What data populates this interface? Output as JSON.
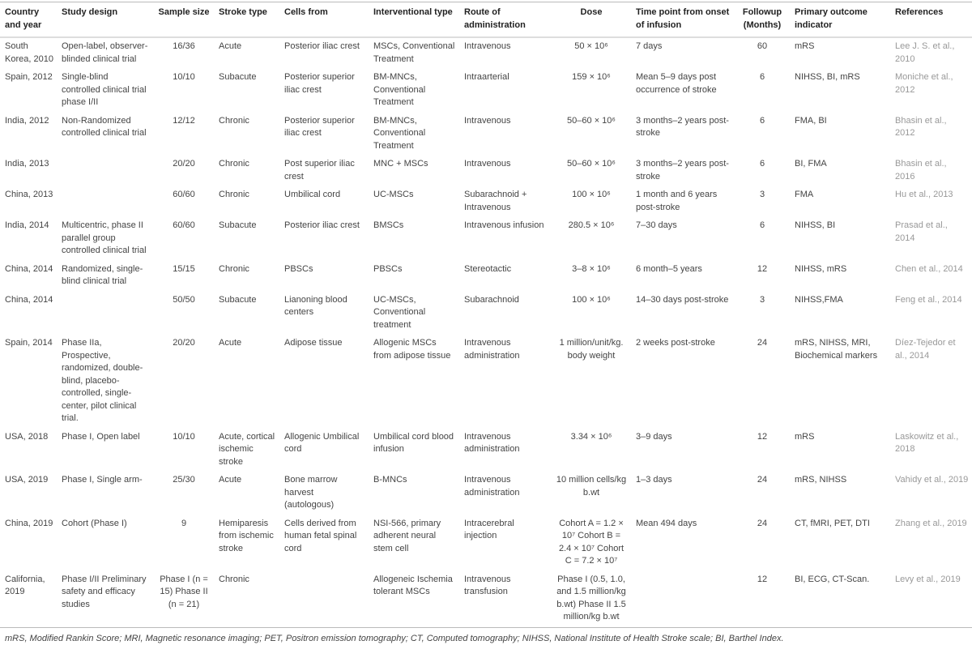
{
  "headers": [
    "Country and year",
    "Study design",
    "Sample size",
    "Stroke type",
    "Cells from",
    "Interventional type",
    "Route of administration",
    "Dose",
    "Time point from onset of infusion",
    "Followup (Months)",
    "Primary outcome indicator",
    "References"
  ],
  "rows": [
    [
      "South Korea, 2010",
      "Open-label, observer-blinded clinical trial",
      "16/36",
      "Acute",
      "Posterior iliac crest",
      "MSCs, Conventional Treatment",
      "Intravenous",
      "50 × 10⁶",
      "7 days",
      "60",
      "mRS",
      "Lee J. S. et al., 2010"
    ],
    [
      "Spain, 2012",
      "Single-blind controlled clinical trial phase I/II",
      "10/10",
      "Subacute",
      "Posterior superior iliac crest",
      "BM-MNCs, Conventional Treatment",
      "Intraarterial",
      "159 × 10⁶",
      "Mean 5–9 days post occurrence of stroke",
      "6",
      "NIHSS, BI, mRS",
      "Moniche et al., 2012"
    ],
    [
      "India, 2012",
      "Non-Randomized controlled clinical trial",
      "12/12",
      "Chronic",
      "Posterior superior iliac crest",
      "BM-MNCs, Conventional Treatment",
      "Intravenous",
      "50–60 × 10⁶",
      "3 months–2 years post-stroke",
      "6",
      "FMA, BI",
      "Bhasin et al., 2012"
    ],
    [
      "India, 2013",
      "",
      "20/20",
      "Chronic",
      "Post superior iliac crest",
      "MNC + MSCs",
      "Intravenous",
      "50–60 × 10⁶",
      "3 months–2 years post-stroke",
      "6",
      "BI, FMA",
      "Bhasin et al., 2016"
    ],
    [
      "China, 2013",
      "",
      "60/60",
      "Chronic",
      "Umbilical cord",
      "UC-MSCs",
      "Subarachnoid + Intravenous",
      "100 × 10⁶",
      "1 month and 6 years post-stroke",
      "3",
      "FMA",
      "Hu et al., 2013"
    ],
    [
      "India, 2014",
      "Multicentric, phase II parallel group controlled clinical trial",
      "60/60",
      "Subacute",
      "Posterior iliac crest",
      "BMSCs",
      "Intravenous infusion",
      "280.5 × 10⁶",
      "7–30 days",
      "6",
      "NIHSS, BI",
      "Prasad et al., 2014"
    ],
    [
      "China, 2014",
      "Randomized, single-blind clinical trial",
      "15/15",
      "Chronic",
      "PBSCs",
      "PBSCs",
      "Stereotactic",
      "3–8 × 10⁶",
      "6 month–5 years",
      "12",
      "NIHSS, mRS",
      "Chen et al., 2014"
    ],
    [
      "China, 2014",
      "",
      "50/50",
      "Subacute",
      "Lianoning blood centers",
      "UC-MSCs, Conventional treatment",
      "Subarachnoid",
      "100 × 10⁶",
      "14–30 days post-stroke",
      "3",
      "NIHSS,FMA",
      "Feng et al., 2014"
    ],
    [
      "Spain, 2014",
      "Phase IIa, Prospective, randomized, double-blind, placebo-controlled, single-center, pilot clinical trial.",
      "20/20",
      "Acute",
      "Adipose tissue",
      "Allogenic MSCs from adipose tissue",
      "Intravenous administration",
      "1 million/unit/kg. body weight",
      "2 weeks post-stroke",
      "24",
      "mRS, NIHSS, MRI, Biochemical markers",
      "Díez-Tejedor et al., 2014"
    ],
    [
      "USA, 2018",
      "Phase I, Open label",
      "10/10",
      "Acute, cortical ischemic stroke",
      "Allogenic Umbilical cord",
      "Umbilical cord blood infusion",
      "Intravenous administration",
      "3.34 × 10⁶",
      "3–9 days",
      "12",
      "mRS",
      "Laskowitz et al., 2018"
    ],
    [
      "USA, 2019",
      "Phase I, Single arm-",
      "25/30",
      "Acute",
      "Bone marrow harvest (autologous)",
      "B-MNCs",
      "Intravenous administration",
      "10 million cells/kg b.wt",
      "1–3 days",
      "24",
      "mRS, NIHSS",
      "Vahidy et al., 2019"
    ],
    [
      "China, 2019",
      "Cohort (Phase I)",
      "9",
      "Hemiparesis from ischemic stroke",
      "Cells derived from human fetal spinal cord",
      "NSI-566, primary adherent neural stem cell",
      "Intracerebral injection",
      "Cohort A = 1.2 × 10⁷ Cohort B = 2.4 × 10⁷ Cohort C = 7.2 × 10⁷",
      "Mean 494 days",
      "24",
      "CT, fMRI, PET, DTI",
      "Zhang et al., 2019"
    ],
    [
      "California, 2019",
      "Phase I/II Preliminary safety and efficacy studies",
      "Phase I (n = 15) Phase II (n = 21)",
      "Chronic",
      "",
      "Allogeneic Ischemia tolerant MSCs",
      "Intravenous transfusion",
      "Phase I (0.5, 1.0, and 1.5 million/kg b.wt) Phase II 1.5 million/kg b.wt",
      "",
      "12",
      "BI, ECG, CT-Scan.",
      "Levy et al., 2019"
    ]
  ],
  "footnote": "mRS, Modified Rankin Score; MRI, Magnetic resonance imaging; PET, Positron emission tomography; CT, Computed tomography; NIHSS, National Institute of Health Stroke scale; BI, Barthel Index."
}
